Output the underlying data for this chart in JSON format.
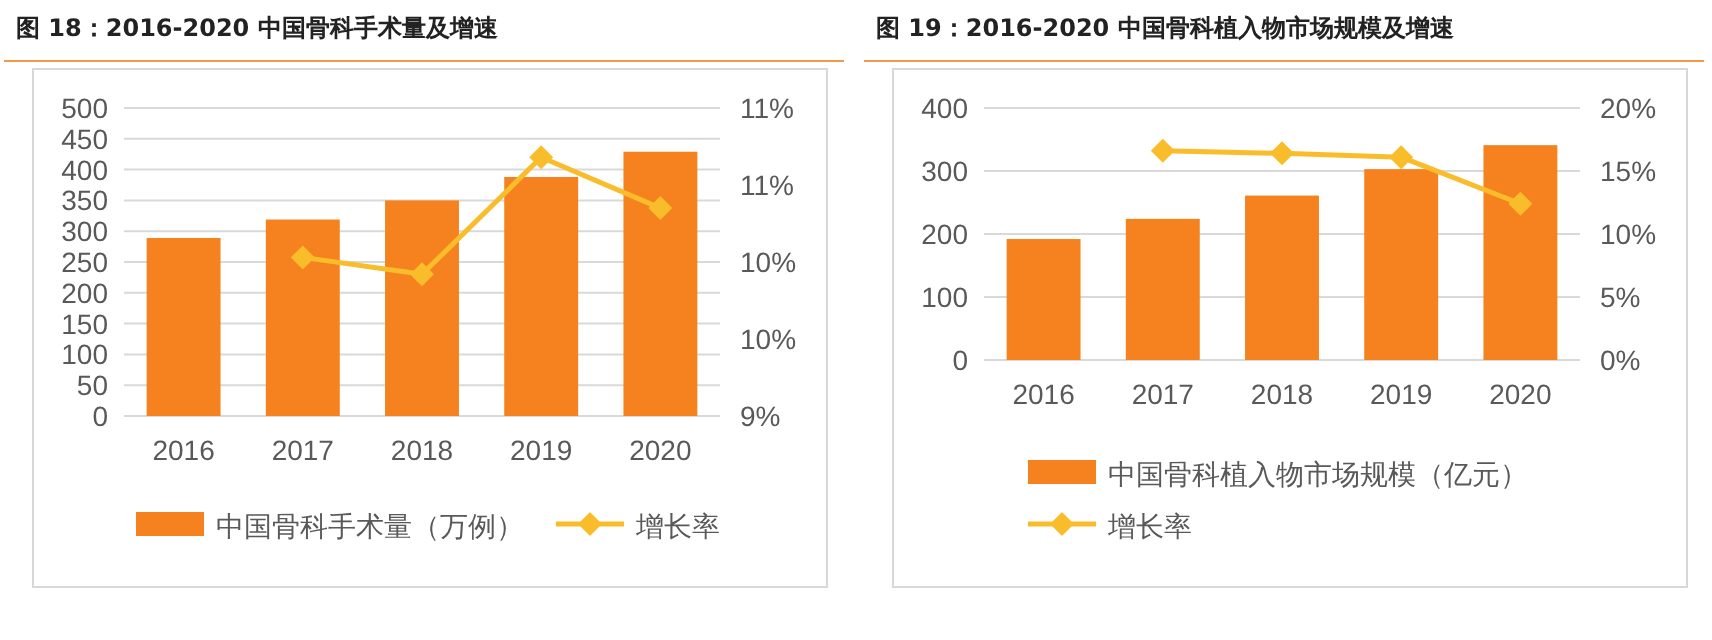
{
  "chart_data": [
    {
      "type": "bar",
      "title": "图 18：2016-2020 中国骨科手术量及增速",
      "categories": [
        "2016",
        "2017",
        "2018",
        "2019",
        "2020"
      ],
      "series": [
        {
          "name": "中国骨科手术量（万例）",
          "color": "#f5821f",
          "values": [
            289,
            319,
            350,
            388,
            429
          ]
        },
        {
          "name": "增长率",
          "type": "line",
          "axis": "y2",
          "color": "#f9bd2b",
          "marker": "diamond",
          "values": [
            null,
            10.03,
            9.92,
            10.68,
            10.35
          ]
        }
      ],
      "ylim": [
        0,
        500
      ],
      "yticks": [
        0,
        50,
        100,
        150,
        200,
        250,
        300,
        350,
        400,
        450,
        500
      ],
      "y2lim": [
        9,
        11
      ],
      "y2ticks": [
        {
          "value": 9,
          "label": "9%"
        },
        {
          "value": 9.5,
          "label": "10%"
        },
        {
          "value": 10,
          "label": "10%"
        },
        {
          "value": 10.5,
          "label": "11%"
        },
        {
          "value": 11,
          "label": "11%"
        }
      ],
      "grid": "y",
      "legend": "bottom"
    },
    {
      "type": "bar",
      "title": "图 19：2016-2020 中国骨科植入物市场规模及增速",
      "categories": [
        "2016",
        "2017",
        "2018",
        "2019",
        "2020"
      ],
      "series": [
        {
          "name": "中国骨科植入物市场规模（亿元）",
          "color": "#f5821f",
          "values": [
            192,
            224,
            261,
            303,
            341
          ]
        },
        {
          "name": "增长率",
          "type": "line",
          "axis": "y2",
          "color": "#f9bd2b",
          "marker": "diamond",
          "values": [
            null,
            16.6,
            16.4,
            16.1,
            12.4
          ]
        }
      ],
      "ylim": [
        0,
        400
      ],
      "yticks": [
        0,
        100,
        200,
        300,
        400
      ],
      "y2lim": [
        0,
        20
      ],
      "y2ticks": [
        {
          "value": 0,
          "label": "0%"
        },
        {
          "value": 5,
          "label": "5%"
        },
        {
          "value": 10,
          "label": "10%"
        },
        {
          "value": 15,
          "label": "15%"
        },
        {
          "value": 20,
          "label": "20%"
        }
      ],
      "grid": "y",
      "legend": "bottom"
    }
  ]
}
